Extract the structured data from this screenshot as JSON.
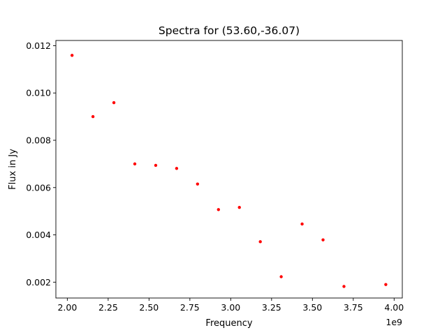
{
  "chart_data": {
    "type": "scatter",
    "title": "Spectra for (53.60,-36.07)",
    "xlabel": "Frequency",
    "ylabel": "Flux in Jy",
    "x_offset_label": "1e9",
    "xlim": [
      1.93,
      4.05
    ],
    "ylim": [
      0.00133,
      0.01222
    ],
    "x_ticks": [
      2.0,
      2.25,
      2.5,
      2.75,
      3.0,
      3.25,
      3.5,
      3.75,
      4.0
    ],
    "x_tick_labels": [
      "2.00",
      "2.25",
      "2.50",
      "2.75",
      "3.00",
      "3.25",
      "3.50",
      "3.75",
      "4.00"
    ],
    "y_ticks": [
      0.002,
      0.004,
      0.006,
      0.008,
      0.01,
      0.012
    ],
    "y_tick_labels": [
      "0.002",
      "0.004",
      "0.006",
      "0.008",
      "0.010",
      "0.012"
    ],
    "grid": false,
    "legend": false,
    "marker_color": "#ff0000",
    "points": [
      {
        "x": 2.029,
        "y": 0.01159
      },
      {
        "x": 2.157,
        "y": 0.009
      },
      {
        "x": 2.285,
        "y": 0.00959
      },
      {
        "x": 2.413,
        "y": 0.007
      },
      {
        "x": 2.541,
        "y": 0.00694
      },
      {
        "x": 2.669,
        "y": 0.00681
      },
      {
        "x": 2.797,
        "y": 0.00615
      },
      {
        "x": 2.925,
        "y": 0.00507
      },
      {
        "x": 3.053,
        "y": 0.00516
      },
      {
        "x": 3.181,
        "y": 0.00371
      },
      {
        "x": 3.309,
        "y": 0.00223
      },
      {
        "x": 3.437,
        "y": 0.00446
      },
      {
        "x": 3.565,
        "y": 0.00379
      },
      {
        "x": 3.693,
        "y": 0.00182
      },
      {
        "x": 3.949,
        "y": 0.0019
      }
    ]
  }
}
